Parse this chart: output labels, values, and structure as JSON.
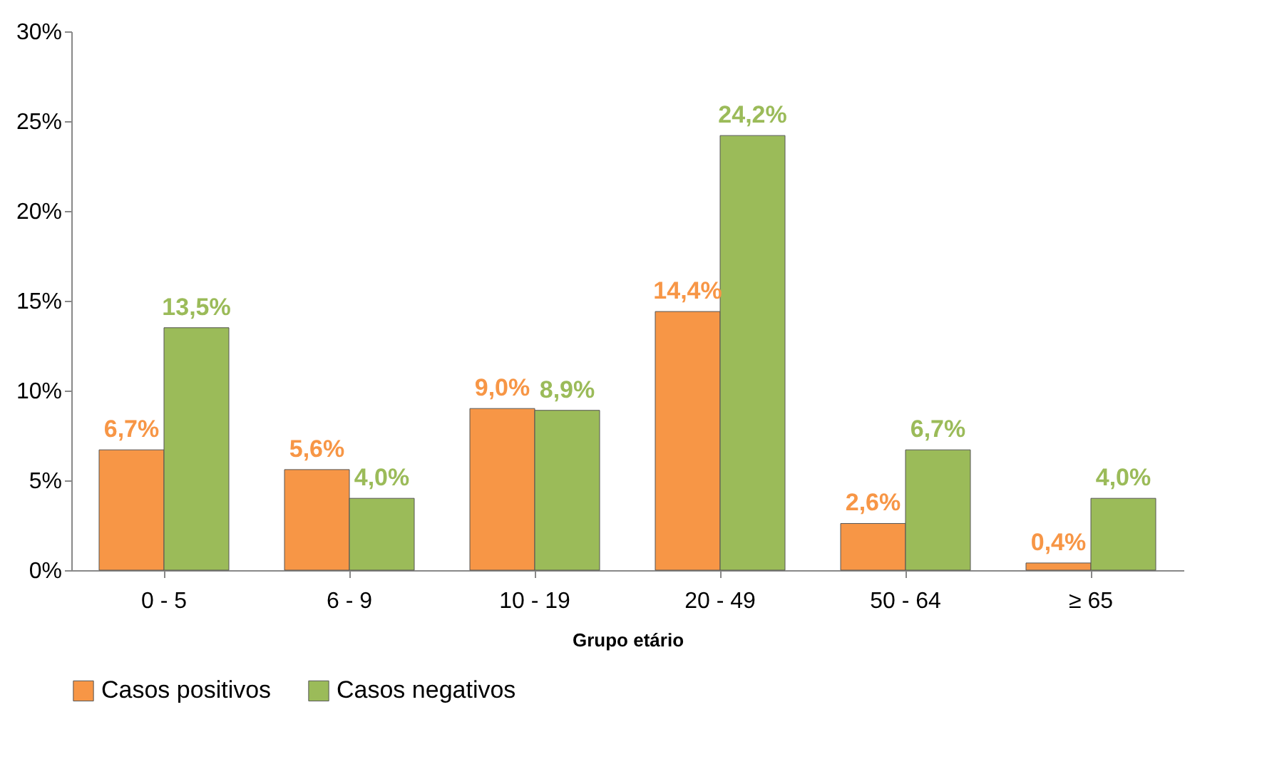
{
  "chart_data": {
    "type": "bar",
    "xlabel": "Grupo etário",
    "categories": [
      "0 - 5",
      "6 - 9",
      "10 - 19",
      "20 - 49",
      "50 - 64",
      "≥ 65"
    ],
    "series": [
      {
        "name": "Casos positivos",
        "color": "#f79646",
        "values": [
          6.7,
          5.6,
          9.0,
          14.4,
          2.6,
          0.4
        ],
        "value_labels": [
          "6,7%",
          "5,6%",
          "9,0%",
          "14,4%",
          "2,6%",
          "0,4%"
        ]
      },
      {
        "name": "Casos negativos",
        "color": "#9bbb59",
        "values": [
          13.5,
          4.0,
          8.9,
          24.2,
          6.7,
          4.0
        ],
        "value_labels": [
          "13,5%",
          "4,0%",
          "8,9%",
          "24,2%",
          "6,7%",
          "4,0%"
        ]
      }
    ],
    "ylim": [
      0,
      30
    ],
    "yticks": [
      {
        "value": 0,
        "label": "0%"
      },
      {
        "value": 5,
        "label": "5%"
      },
      {
        "value": 10,
        "label": "10%"
      },
      {
        "value": 15,
        "label": "15%"
      },
      {
        "value": 20,
        "label": "20%"
      },
      {
        "value": 25,
        "label": "25%"
      },
      {
        "value": 30,
        "label": "30%"
      }
    ],
    "grid": false,
    "legend": "bottom"
  }
}
